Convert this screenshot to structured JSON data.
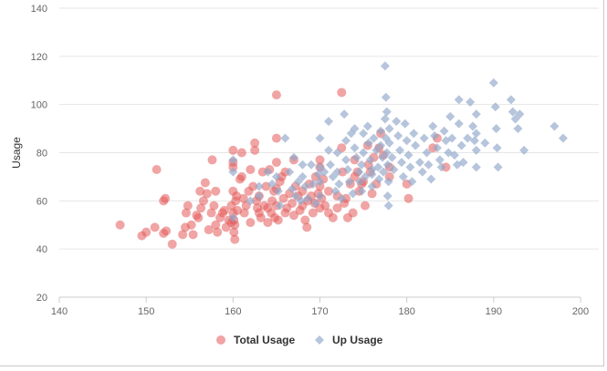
{
  "colors": {
    "total_usage": "#e35a5a",
    "up_usage": "#8fa6c9",
    "grid": "#e6e6e6",
    "axis": "#cccccc"
  },
  "chart_data": {
    "type": "scatter",
    "title": "",
    "xlabel": "",
    "ylabel": "Usage",
    "xlim": [
      140,
      200
    ],
    "ylim": [
      20,
      140
    ],
    "xticks": [
      140,
      150,
      160,
      170,
      180,
      190,
      200
    ],
    "yticks": [
      20,
      40,
      60,
      80,
      100,
      120,
      140
    ],
    "grid": "horizontal",
    "legend_position": "bottom",
    "series": [
      {
        "name": "Total Usage",
        "color": "#e35a5a",
        "marker": "circle",
        "points": [
          [
            147.0,
            50
          ],
          [
            149.5,
            45.5
          ],
          [
            150,
            47
          ],
          [
            151,
            49
          ],
          [
            151.2,
            73
          ],
          [
            152,
            60
          ],
          [
            152.2,
            61
          ],
          [
            152,
            46.5
          ],
          [
            152.3,
            47.5
          ],
          [
            153,
            42
          ],
          [
            154.2,
            46
          ],
          [
            154.5,
            49
          ],
          [
            154.6,
            55
          ],
          [
            154.8,
            58
          ],
          [
            155.2,
            50
          ],
          [
            155.4,
            46
          ],
          [
            155.8,
            54
          ],
          [
            156,
            53
          ],
          [
            156.2,
            64
          ],
          [
            156.3,
            57
          ],
          [
            156.6,
            60
          ],
          [
            156.8,
            67.5
          ],
          [
            157,
            63
          ],
          [
            157.2,
            48
          ],
          [
            157.5,
            55
          ],
          [
            157.8,
            58
          ],
          [
            157.6,
            77
          ],
          [
            158,
            64
          ],
          [
            158,
            50
          ],
          [
            158.2,
            47
          ],
          [
            158.5,
            53
          ],
          [
            158.8,
            55
          ],
          [
            159,
            56
          ],
          [
            159.2,
            49
          ],
          [
            159.5,
            52
          ],
          [
            159.8,
            51
          ],
          [
            159.8,
            58
          ],
          [
            160,
            64
          ],
          [
            160,
            74
          ],
          [
            160,
            81
          ],
          [
            160,
            76
          ],
          [
            160,
            55
          ],
          [
            160.1,
            52
          ],
          [
            160.2,
            50
          ],
          [
            160.3,
            60
          ],
          [
            160.1,
            47
          ],
          [
            160.2,
            44
          ],
          [
            160.4,
            62
          ],
          [
            160.5,
            56
          ],
          [
            160.8,
            69
          ],
          [
            161,
            70
          ],
          [
            161,
            80
          ],
          [
            161.2,
            61
          ],
          [
            161.3,
            55
          ],
          [
            161.5,
            58
          ],
          [
            161.8,
            64
          ],
          [
            162,
            51
          ],
          [
            162,
            73
          ],
          [
            162.3,
            66
          ],
          [
            162.5,
            84
          ],
          [
            162.5,
            81
          ],
          [
            162.7,
            60
          ],
          [
            162.8,
            57
          ],
          [
            163,
            55
          ],
          [
            163,
            62
          ],
          [
            163.2,
            53
          ],
          [
            163.4,
            72
          ],
          [
            163.6,
            58
          ],
          [
            163.8,
            66
          ],
          [
            164,
            51
          ],
          [
            164,
            57
          ],
          [
            164.2,
            73
          ],
          [
            164.4,
            55
          ],
          [
            164.5,
            60
          ],
          [
            164.7,
            64
          ],
          [
            164.8,
            53
          ],
          [
            165,
            104
          ],
          [
            165,
            86
          ],
          [
            165,
            76
          ],
          [
            165,
            65
          ],
          [
            165,
            58
          ],
          [
            165.2,
            52
          ],
          [
            165.4,
            68
          ],
          [
            165.6,
            70
          ],
          [
            165.8,
            61
          ],
          [
            166,
            55
          ],
          [
            166,
            72
          ],
          [
            166.2,
            57
          ],
          [
            166.5,
            63
          ],
          [
            166.8,
            59
          ],
          [
            167,
            54
          ],
          [
            167,
            77
          ],
          [
            167.2,
            66
          ],
          [
            167.5,
            62
          ],
          [
            167.7,
            56
          ],
          [
            168,
            58
          ],
          [
            168,
            64
          ],
          [
            168.3,
            52
          ],
          [
            168.5,
            49
          ],
          [
            168.6,
            60
          ],
          [
            168.8,
            67
          ],
          [
            169,
            62
          ],
          [
            169.2,
            55
          ],
          [
            169.4,
            59
          ],
          [
            169.5,
            70
          ],
          [
            169.8,
            63
          ],
          [
            170,
            74
          ],
          [
            170,
            77
          ],
          [
            170,
            66
          ],
          [
            170,
            57
          ],
          [
            170.2,
            61
          ],
          [
            170.4,
            69
          ],
          [
            170.6,
            58
          ],
          [
            171,
            55
          ],
          [
            171,
            64
          ],
          [
            171.5,
            53
          ],
          [
            172,
            57
          ],
          [
            172,
            62
          ],
          [
            172.5,
            105
          ],
          [
            172.5,
            82
          ],
          [
            172.6,
            72
          ],
          [
            172.8,
            59
          ],
          [
            173,
            61
          ],
          [
            173.2,
            53
          ],
          [
            173.5,
            67
          ],
          [
            173.8,
            55
          ],
          [
            174,
            77
          ],
          [
            174,
            70
          ],
          [
            174.3,
            72
          ],
          [
            174.5,
            64
          ],
          [
            174.8,
            67
          ],
          [
            175,
            68
          ],
          [
            175.2,
            58
          ],
          [
            175.5,
            83
          ],
          [
            175.6,
            75
          ],
          [
            175.8,
            72
          ],
          [
            176,
            63
          ],
          [
            176.2,
            78
          ],
          [
            176.5,
            67
          ],
          [
            176.8,
            82
          ],
          [
            177,
            88
          ],
          [
            177.3,
            79
          ],
          [
            178,
            74
          ],
          [
            178,
            70
          ],
          [
            180,
            67
          ],
          [
            180.2,
            61
          ],
          [
            183,
            82
          ],
          [
            183.5,
            86
          ],
          [
            184.5,
            74
          ]
        ]
      },
      {
        "name": "Up Usage",
        "color": "#8fa6c9",
        "marker": "diamond",
        "points": [
          [
            160,
            72
          ],
          [
            160,
            77
          ],
          [
            160,
            53
          ],
          [
            162,
            60
          ],
          [
            163,
            62
          ],
          [
            163,
            66
          ],
          [
            164,
            72
          ],
          [
            164.5,
            67
          ],
          [
            165,
            70
          ],
          [
            165.2,
            64
          ],
          [
            165.4,
            58
          ],
          [
            166,
            86
          ],
          [
            166.5,
            72
          ],
          [
            166.8,
            65
          ],
          [
            167,
            78
          ],
          [
            167.2,
            62
          ],
          [
            167.5,
            68
          ],
          [
            167.8,
            60
          ],
          [
            168,
            75
          ],
          [
            168,
            70
          ],
          [
            168.3,
            66
          ],
          [
            168.6,
            61
          ],
          [
            169,
            75
          ],
          [
            169.2,
            67
          ],
          [
            169.5,
            59
          ],
          [
            169.8,
            71
          ],
          [
            170,
            86
          ],
          [
            170,
            74
          ],
          [
            170,
            68
          ],
          [
            170,
            62
          ],
          [
            170.5,
            72
          ],
          [
            171,
            93
          ],
          [
            171,
            81
          ],
          [
            171.2,
            75
          ],
          [
            171.5,
            70
          ],
          [
            171.8,
            64
          ],
          [
            172,
            80
          ],
          [
            172,
            72
          ],
          [
            172.2,
            67
          ],
          [
            172.5,
            61
          ],
          [
            172.8,
            96
          ],
          [
            173,
            85
          ],
          [
            173,
            77
          ],
          [
            173.2,
            73
          ],
          [
            173.4,
            68
          ],
          [
            173.6,
            88
          ],
          [
            173.8,
            63
          ],
          [
            174,
            90
          ],
          [
            174,
            82
          ],
          [
            174.2,
            78
          ],
          [
            174.5,
            72
          ],
          [
            174.6,
            68
          ],
          [
            174.8,
            75
          ],
          [
            175,
            88
          ],
          [
            175,
            80
          ],
          [
            175.2,
            70
          ],
          [
            175.5,
            91
          ],
          [
            175.6,
            84
          ],
          [
            175.8,
            77
          ],
          [
            176,
            73
          ],
          [
            176,
            66
          ],
          [
            176.2,
            86
          ],
          [
            176.5,
            81
          ],
          [
            176.7,
            74
          ],
          [
            176.8,
            69
          ],
          [
            177,
            89
          ],
          [
            177,
            83
          ],
          [
            177.2,
            78
          ],
          [
            177.3,
            72
          ],
          [
            177.5,
            94
          ],
          [
            177.6,
            86
          ],
          [
            177.7,
            80
          ],
          [
            177.8,
            75
          ],
          [
            177.9,
            68
          ],
          [
            177.5,
            116
          ],
          [
            177.6,
            103
          ],
          [
            177.7,
            97
          ],
          [
            177.8,
            62
          ],
          [
            177.9,
            58
          ],
          [
            178,
            90
          ],
          [
            178,
            84
          ],
          [
            178.3,
            78
          ],
          [
            178.5,
            73
          ],
          [
            178.8,
            93
          ],
          [
            179,
            87
          ],
          [
            179.2,
            81
          ],
          [
            179.4,
            76
          ],
          [
            179.6,
            70
          ],
          [
            179.8,
            92
          ],
          [
            180,
            85
          ],
          [
            180.2,
            79
          ],
          [
            180.4,
            74
          ],
          [
            180.6,
            68
          ],
          [
            180.8,
            88
          ],
          [
            181,
            83
          ],
          [
            181.5,
            76
          ],
          [
            181.8,
            72
          ],
          [
            182,
            86
          ],
          [
            182.3,
            80
          ],
          [
            182.5,
            75
          ],
          [
            182.8,
            69
          ],
          [
            183,
            91
          ],
          [
            183.2,
            87
          ],
          [
            183.5,
            82
          ],
          [
            183.8,
            77
          ],
          [
            184,
            74
          ],
          [
            184.3,
            89
          ],
          [
            184.5,
            85
          ],
          [
            184.8,
            80
          ],
          [
            185,
            95
          ],
          [
            185.2,
            86
          ],
          [
            185.5,
            79
          ],
          [
            185.8,
            75
          ],
          [
            186,
            102
          ],
          [
            186,
            92
          ],
          [
            186.3,
            83
          ],
          [
            186.5,
            76
          ],
          [
            187,
            86
          ],
          [
            187.3,
            101
          ],
          [
            187.6,
            91
          ],
          [
            187.8,
            85
          ],
          [
            188,
            96
          ],
          [
            188,
            88
          ],
          [
            188,
            81
          ],
          [
            188,
            74
          ],
          [
            189,
            84
          ],
          [
            190,
            109
          ],
          [
            190.2,
            99
          ],
          [
            190.3,
            90
          ],
          [
            190.4,
            82
          ],
          [
            190.5,
            74
          ],
          [
            192,
            102
          ],
          [
            192.2,
            97
          ],
          [
            192.5,
            94
          ],
          [
            192.8,
            90
          ],
          [
            193,
            96
          ],
          [
            193.5,
            81
          ],
          [
            197,
            91
          ],
          [
            198,
            86
          ],
          [
            176,
            71
          ],
          [
            174.8,
            64
          ]
        ]
      }
    ]
  }
}
